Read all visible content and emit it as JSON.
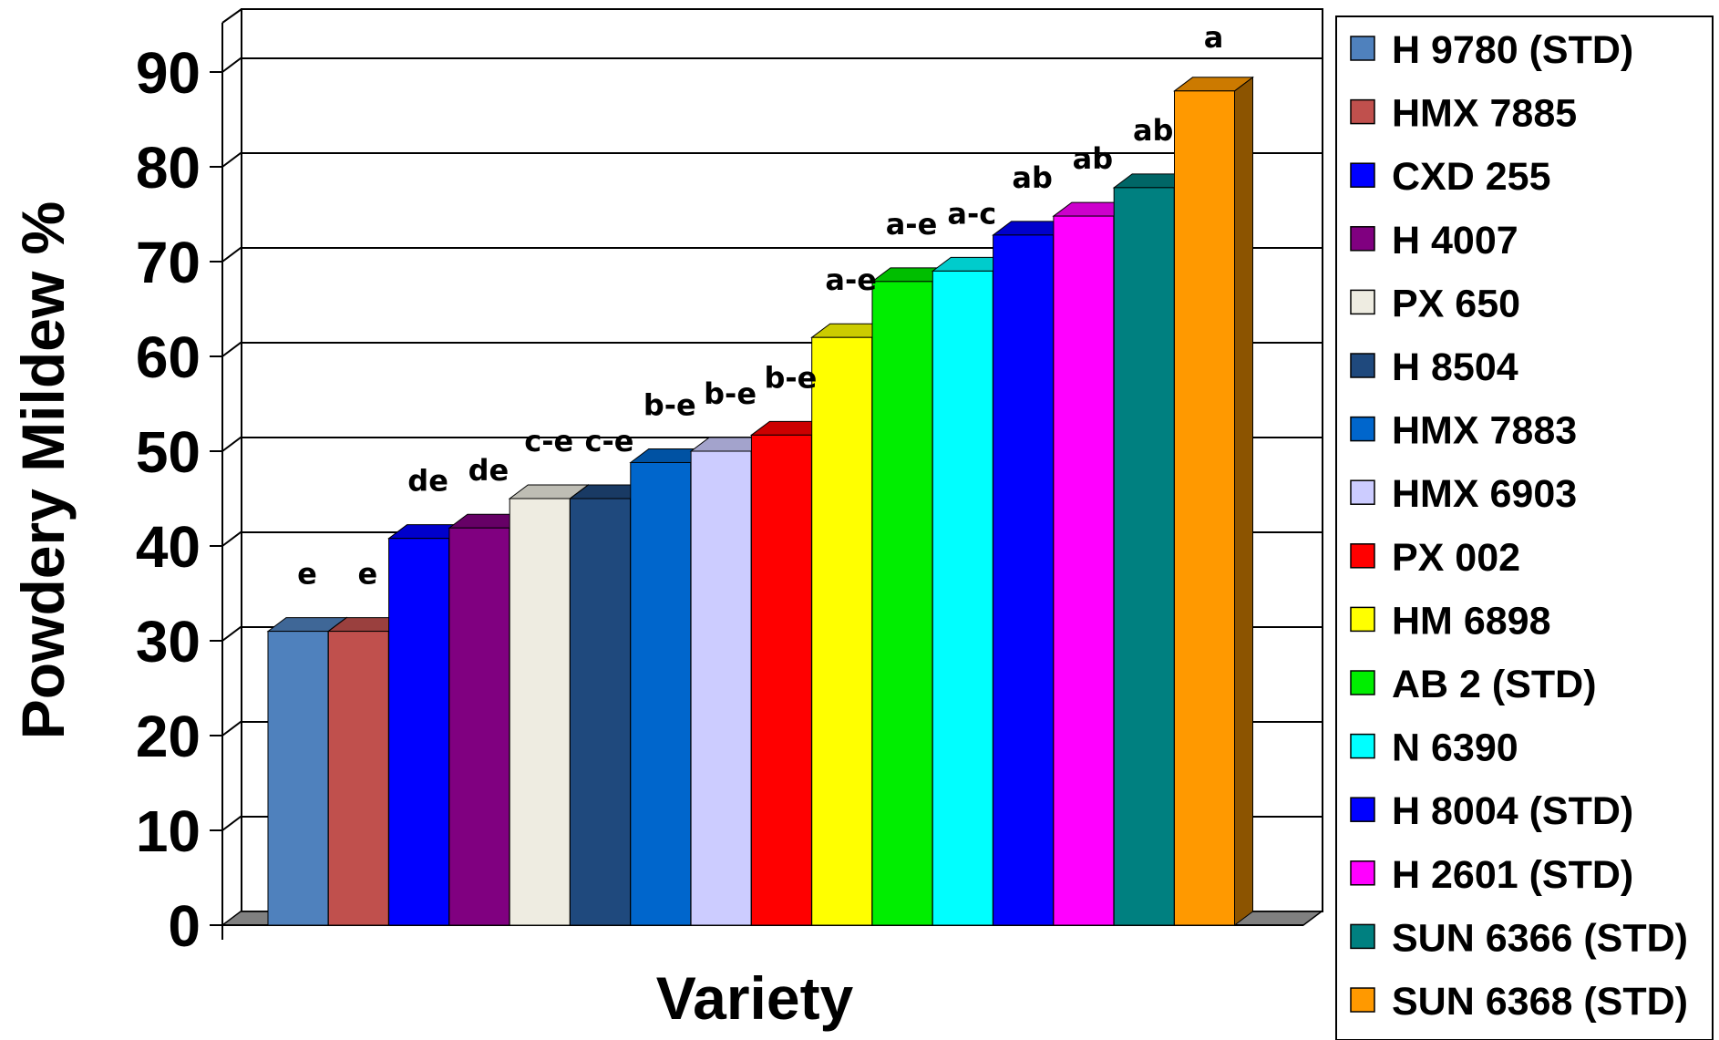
{
  "chart_data": {
    "type": "bar",
    "title": "",
    "xlabel": "Variety",
    "ylabel": "Powdery Mildew %",
    "ylim": [
      0,
      90
    ],
    "yticks": [
      0,
      10,
      20,
      30,
      40,
      50,
      60,
      70,
      80,
      90
    ],
    "grid": true,
    "legend_position": "right",
    "three_d": true,
    "categories": [
      "H 9780 (STD)",
      "HMX 7885",
      "CXD 255",
      "H 4007",
      "PX 650",
      "H 8504",
      "HMX 7883",
      "HMX 6903",
      "PX 002",
      "HM 6898",
      "AB 2 (STD)",
      "N 6390",
      "H 8004 (STD)",
      "H 2601 (STD)",
      "SUN 6366 (STD)",
      "SUN 6368 (STD)"
    ],
    "values": [
      31,
      31,
      40.8,
      41.9,
      45,
      45,
      48.8,
      50,
      51.7,
      62,
      67.9,
      69,
      72.8,
      74.8,
      77.8,
      88
    ],
    "significance_labels": [
      "e",
      "e",
      "de",
      "de",
      "c-e",
      "c-e",
      "b-e",
      "b-e",
      "b-e",
      "a-e",
      "a-e",
      "a-c",
      "ab",
      "ab",
      "ab",
      "a"
    ],
    "colors": [
      "#4f81bd",
      "#c0504d",
      "#0000ff",
      "#800080",
      "#eeece1",
      "#1f497d",
      "#0066cc",
      "#ccccff",
      "#ff0000",
      "#ffff00",
      "#00ee00",
      "#00ffff",
      "#0000ff",
      "#ff00ff",
      "#008080",
      "#ff9900"
    ]
  }
}
